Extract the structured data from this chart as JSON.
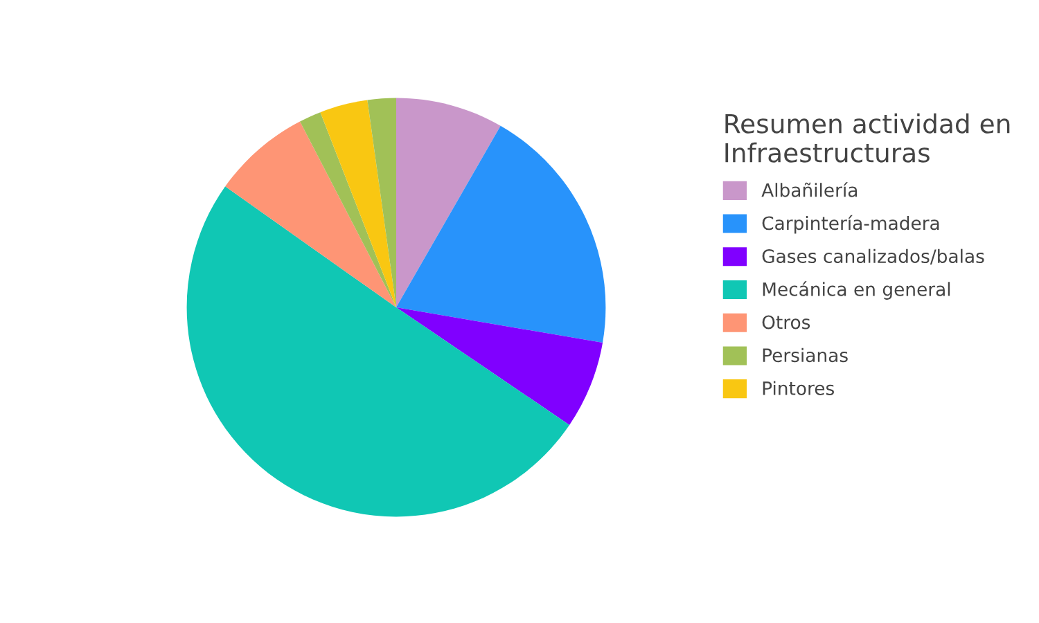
{
  "chart_data": {
    "type": "pie",
    "legend_title": "Resumen actividad en\nInfraestructuras",
    "legend": "right",
    "categories": [
      "Albañilería",
      "Carpintería-madera",
      "Gases canalizados/balas",
      "Mecánica en general",
      "Otros",
      "Persianas",
      "Pintores",
      null
    ],
    "values": [
      8.3,
      19.4,
      6.8,
      50.3,
      7.6,
      1.7,
      3.7,
      2.2
    ],
    "colors": [
      "#c997ca",
      "#2893fb",
      "#8000ff",
      "#10c7b4",
      "#fe9575",
      "#a1c157",
      "#f9c712",
      "#a1c157"
    ]
  }
}
